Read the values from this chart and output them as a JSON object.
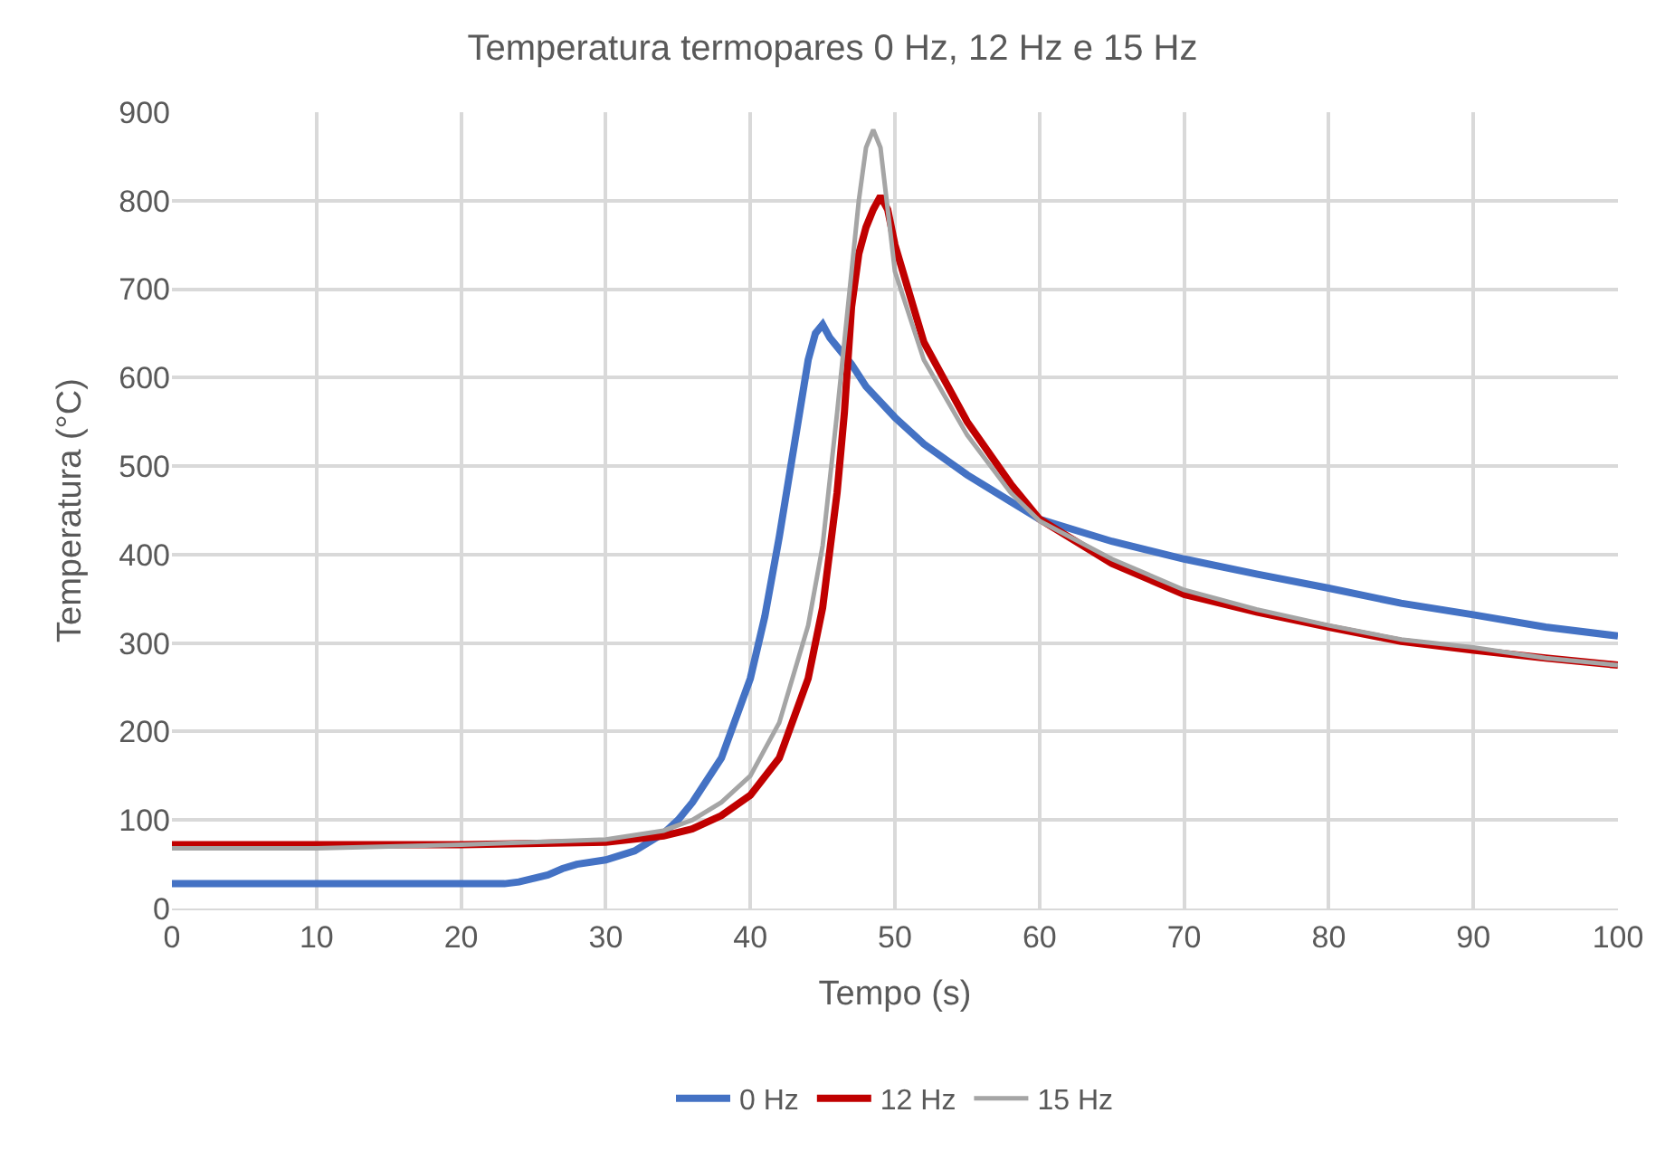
{
  "chart_data": {
    "type": "line",
    "title": "Temperatura termopares 0 Hz, 12 Hz e 15 Hz",
    "xlabel": "Tempo (s)",
    "ylabel": "Temperatura (°C)",
    "xlim": [
      0,
      100
    ],
    "xticks": [
      0,
      10,
      20,
      30,
      40,
      50,
      60,
      70,
      80,
      90,
      100
    ],
    "ylim": [
      0,
      900
    ],
    "yticks": [
      0,
      100,
      200,
      300,
      400,
      500,
      600,
      700,
      800,
      900
    ],
    "grid": true,
    "legend": "bottom",
    "marker": "none",
    "line_style": "solid",
    "series": [
      {
        "name": "0 Hz",
        "color": "#4472c4",
        "x": [
          0,
          10,
          20,
          23,
          24,
          26,
          27,
          28,
          30,
          32,
          34,
          35,
          36,
          38,
          40,
          41,
          42,
          43,
          44,
          44.5,
          45,
          45.5,
          46,
          47,
          48,
          50,
          52,
          55,
          58,
          60,
          65,
          70,
          75,
          80,
          85,
          90,
          95,
          100
        ],
        "values": [
          28,
          28,
          28,
          28,
          30,
          38,
          45,
          50,
          55,
          65,
          85,
          100,
          120,
          170,
          260,
          330,
          420,
          520,
          620,
          650,
          660,
          645,
          635,
          615,
          590,
          555,
          525,
          490,
          460,
          440,
          415,
          395,
          378,
          362,
          345,
          332,
          318,
          308
        ]
      },
      {
        "name": "12 Hz",
        "color": "#c00000",
        "x": [
          0,
          10,
          20,
          30,
          34,
          36,
          38,
          40,
          42,
          44,
          45,
          46,
          46.5,
          47,
          47.5,
          48,
          48.5,
          49,
          49.5,
          50,
          52,
          55,
          58,
          60,
          65,
          70,
          75,
          80,
          85,
          90,
          95,
          100
        ],
        "values": [
          72,
          72,
          72,
          75,
          82,
          90,
          105,
          128,
          170,
          260,
          340,
          470,
          560,
          680,
          740,
          770,
          790,
          805,
          790,
          750,
          640,
          550,
          480,
          440,
          390,
          355,
          335,
          318,
          302,
          292,
          283,
          275
        ]
      },
      {
        "name": "15 Hz",
        "color": "#a5a5a5",
        "x": [
          0,
          10,
          20,
          30,
          34,
          36,
          38,
          40,
          42,
          44,
          45,
          46,
          47,
          47.5,
          48,
          48.5,
          49,
          49.5,
          50,
          52,
          55,
          58,
          60,
          65,
          70,
          75,
          80,
          85,
          90,
          95,
          100
        ],
        "values": [
          68,
          68,
          72,
          78,
          88,
          100,
          120,
          150,
          210,
          320,
          410,
          560,
          720,
          800,
          860,
          880,
          860,
          790,
          720,
          620,
          535,
          470,
          438,
          395,
          360,
          338,
          320,
          304,
          295,
          283,
          275
        ]
      }
    ]
  }
}
